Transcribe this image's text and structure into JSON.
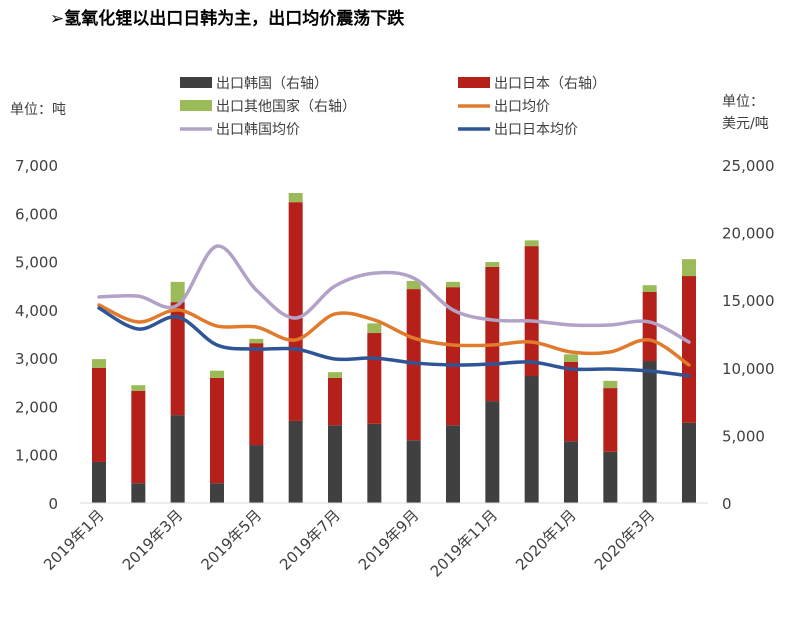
{
  "title": "➢氢氧化锂以出口日韩为主，出口均价震荡下跌",
  "chart_data": {
    "type": "bar+line",
    "left_axis_title": "单位：吨",
    "right_axis_title_line1": "单位：",
    "right_axis_title_line2": "美元/吨",
    "left_ylim": [
      0,
      7000
    ],
    "right_ylim": [
      0,
      25000
    ],
    "left_ticks": [
      "0",
      "1,000",
      "2,000",
      "3,000",
      "4,000",
      "5,000",
      "6,000",
      "7,000"
    ],
    "right_ticks": [
      "0",
      "5,000",
      "10,000",
      "15,000",
      "20,000",
      "25,000"
    ],
    "categories": [
      "2019年1月",
      "2019年2月",
      "2019年3月",
      "2019年4月",
      "2019年5月",
      "2019年6月",
      "2019年7月",
      "2019年8月",
      "2019年9月",
      "2019年10月",
      "2019年11月",
      "2019年12月",
      "2020年1月",
      "2020年2月",
      "2020年3月",
      "2020年4月"
    ],
    "x_tick_labels": [
      "2019年1月",
      "2019年3月",
      "2019年5月",
      "2019年7月",
      "2019年9月",
      "2019年11月",
      "2020年1月",
      "2020年3月"
    ],
    "grid": false,
    "legend_position": "top",
    "bar_series": [
      {
        "name": "出口韩国（右轴）",
        "color": "#404040",
        "values": [
          850,
          410,
          1820,
          410,
          1200,
          1700,
          1610,
          1640,
          1300,
          1610,
          2110,
          2630,
          1280,
          1060,
          2940,
          1660
        ]
      },
      {
        "name": "出口日本（右轴）",
        "color": "#B5201A",
        "values": [
          1950,
          1910,
          2340,
          2180,
          2110,
          4530,
          980,
          1880,
          3130,
          2860,
          2780,
          2690,
          1640,
          1320,
          1430,
          3040
        ]
      },
      {
        "name": "出口其他国家（右轴）",
        "color": "#9BBB59",
        "values": [
          180,
          120,
          420,
          150,
          90,
          190,
          120,
          200,
          170,
          110,
          100,
          120,
          160,
          150,
          140,
          350
        ]
      }
    ],
    "line_series": [
      {
        "name": "出口均价",
        "color": "#E07B2E",
        "values": [
          14650,
          13390,
          14280,
          13090,
          13020,
          12060,
          13980,
          13540,
          12200,
          11690,
          11690,
          11910,
          11170,
          11170,
          12060,
          10210
        ]
      },
      {
        "name": "出口韩国均价",
        "color": "#B3A2C7",
        "values": [
          15240,
          15300,
          14640,
          19000,
          15750,
          13680,
          16050,
          17000,
          16640,
          14280,
          13540,
          13460,
          13170,
          13170,
          13390,
          11900
        ]
      },
      {
        "name": "出口日本均价",
        "color": "#2F5597",
        "values": [
          14420,
          12870,
          13760,
          11690,
          11390,
          11390,
          10650,
          10720,
          10360,
          10210,
          10280,
          10430,
          9910,
          9910,
          9760,
          9400
        ]
      }
    ]
  }
}
